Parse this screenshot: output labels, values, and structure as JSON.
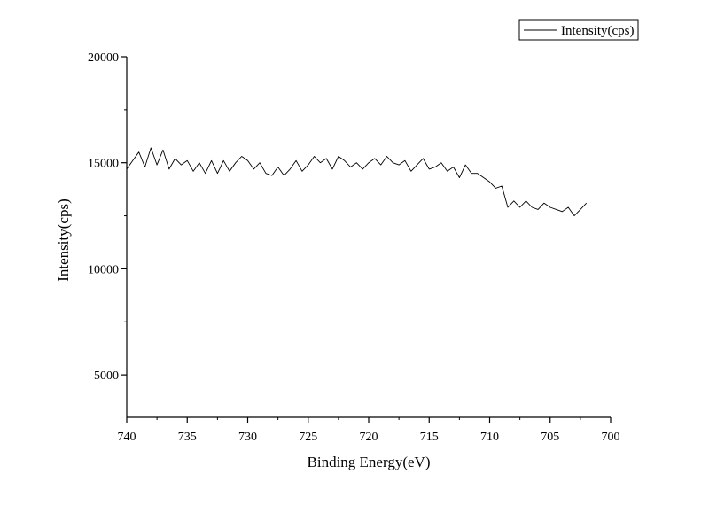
{
  "chart_data": {
    "type": "line",
    "title": "",
    "xlabel": "Binding Energy(eV)",
    "ylabel": "Intensity(cps)",
    "xlim": [
      740,
      700
    ],
    "ylim": [
      3000,
      20000
    ],
    "x_reversed": true,
    "xticks": [
      740,
      735,
      730,
      725,
      720,
      715,
      710,
      705,
      700
    ],
    "yticks": [
      5000,
      10000,
      15000,
      20000
    ],
    "grid": false,
    "legend_position": "top-right",
    "line_color": "#000000",
    "series": [
      {
        "name": "Intensity(cps)",
        "x": [
          740.0,
          739.5,
          739.0,
          738.5,
          738.0,
          737.5,
          737.0,
          736.5,
          736.0,
          735.5,
          735.0,
          734.5,
          734.0,
          733.5,
          733.0,
          732.5,
          732.0,
          731.5,
          731.0,
          730.5,
          730.0,
          729.5,
          729.0,
          728.5,
          728.0,
          727.5,
          727.0,
          726.5,
          726.0,
          725.5,
          725.0,
          724.5,
          724.0,
          723.5,
          723.0,
          722.5,
          722.0,
          721.5,
          721.0,
          720.5,
          720.0,
          719.5,
          719.0,
          718.5,
          718.0,
          717.5,
          717.0,
          716.5,
          716.0,
          715.5,
          715.0,
          714.5,
          714.0,
          713.5,
          713.0,
          712.5,
          712.0,
          711.5,
          711.0,
          710.5,
          710.0,
          709.5,
          709.0,
          708.5,
          708.0,
          707.5,
          707.0,
          706.5,
          706.0,
          705.5,
          705.0,
          704.5,
          704.0,
          703.5,
          703.0,
          702.5,
          702.0
        ],
        "y": [
          14700,
          15100,
          15500,
          14800,
          15700,
          14900,
          15600,
          14700,
          15200,
          14900,
          15100,
          14600,
          15000,
          14500,
          15100,
          14500,
          15100,
          14600,
          15000,
          15300,
          15100,
          14700,
          15000,
          14500,
          14400,
          14800,
          14400,
          14700,
          15100,
          14600,
          14900,
          15300,
          15000,
          15200,
          14700,
          15300,
          15100,
          14800,
          15000,
          14700,
          15000,
          15200,
          14900,
          15300,
          15000,
          14900,
          15100,
          14600,
          14900,
          15200,
          14700,
          14800,
          15000,
          14600,
          14800,
          14300,
          14900,
          14500,
          14500,
          14300,
          14100,
          13800,
          13900,
          12900,
          13200,
          12900,
          13200,
          12900,
          12800,
          13100,
          12900,
          12800,
          12700,
          12900,
          12500,
          12800,
          13100
        ]
      }
    ]
  }
}
